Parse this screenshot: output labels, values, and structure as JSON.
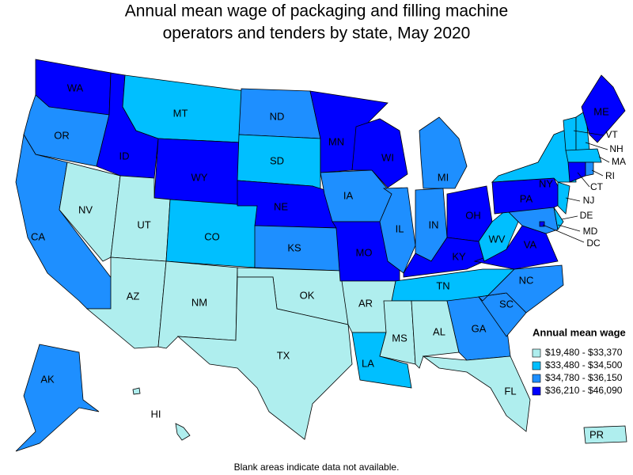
{
  "title_lines": [
    "Annual mean wage of packaging and filling machine",
    "operators and tenders by state, May 2020"
  ],
  "legend": {
    "title": "Annual mean wage",
    "items": [
      {
        "label": "$19,480 - $33,370",
        "color": "#afeeee"
      },
      {
        "label": "$33,480 - $34,500",
        "color": "#00bfff"
      },
      {
        "label": "$34,780 - $36,150",
        "color": "#1e8fff"
      },
      {
        "label": "$36,210 - $46,090",
        "color": "#0000ff"
      }
    ]
  },
  "states": [
    {
      "label": "WA",
      "class": 3
    },
    {
      "label": "OR",
      "class": 2
    },
    {
      "label": "CA",
      "class": 2
    },
    {
      "label": "NV",
      "class": 0
    },
    {
      "label": "ID",
      "class": 3
    },
    {
      "label": "MT",
      "class": 1
    },
    {
      "label": "WY",
      "class": 3
    },
    {
      "label": "UT",
      "class": 0
    },
    {
      "label": "CO",
      "class": 1
    },
    {
      "label": "AZ",
      "class": 0
    },
    {
      "label": "NM",
      "class": 0
    },
    {
      "label": "ND",
      "class": 2
    },
    {
      "label": "SD",
      "class": 1
    },
    {
      "label": "NE",
      "class": 3
    },
    {
      "label": "KS",
      "class": 2
    },
    {
      "label": "OK",
      "class": 0
    },
    {
      "label": "TX",
      "class": 0
    },
    {
      "label": "MN",
      "class": 3
    },
    {
      "label": "IA",
      "class": 2
    },
    {
      "label": "MO",
      "class": 3
    },
    {
      "label": "AR",
      "class": 0
    },
    {
      "label": "LA",
      "class": 1
    },
    {
      "label": "WI",
      "class": 3
    },
    {
      "label": "IL",
      "class": 2
    },
    {
      "label": "MI",
      "class": 2
    },
    {
      "label": "IN",
      "class": 2
    },
    {
      "label": "OH",
      "class": 3
    },
    {
      "label": "KY",
      "class": 3
    },
    {
      "label": "TN",
      "class": 1
    },
    {
      "label": "MS",
      "class": 0
    },
    {
      "label": "AL",
      "class": 0
    },
    {
      "label": "GA",
      "class": 2
    },
    {
      "label": "FL",
      "class": 0
    },
    {
      "label": "SC",
      "class": 2
    },
    {
      "label": "NC",
      "class": 2
    },
    {
      "label": "VA",
      "class": 3
    },
    {
      "label": "WV",
      "class": 1
    },
    {
      "label": "MD",
      "class": 2
    },
    {
      "label": "DE",
      "class": 1
    },
    {
      "label": "DC",
      "class": 3
    },
    {
      "label": "PA",
      "class": 3
    },
    {
      "label": "NJ",
      "class": 1
    },
    {
      "label": "NY",
      "class": 1
    },
    {
      "label": "VT",
      "class": 1
    },
    {
      "label": "NH",
      "class": 1
    },
    {
      "label": "ME",
      "class": 3
    },
    {
      "label": "MA",
      "class": 1
    },
    {
      "label": "CT",
      "class": 3
    },
    {
      "label": "RI",
      "class": 2
    },
    {
      "label": "AK",
      "class": 2
    },
    {
      "label": "HI",
      "class": 0
    },
    {
      "label": "PR",
      "class": 0
    }
  ],
  "footnote": "Blank areas indicate data not available."
}
